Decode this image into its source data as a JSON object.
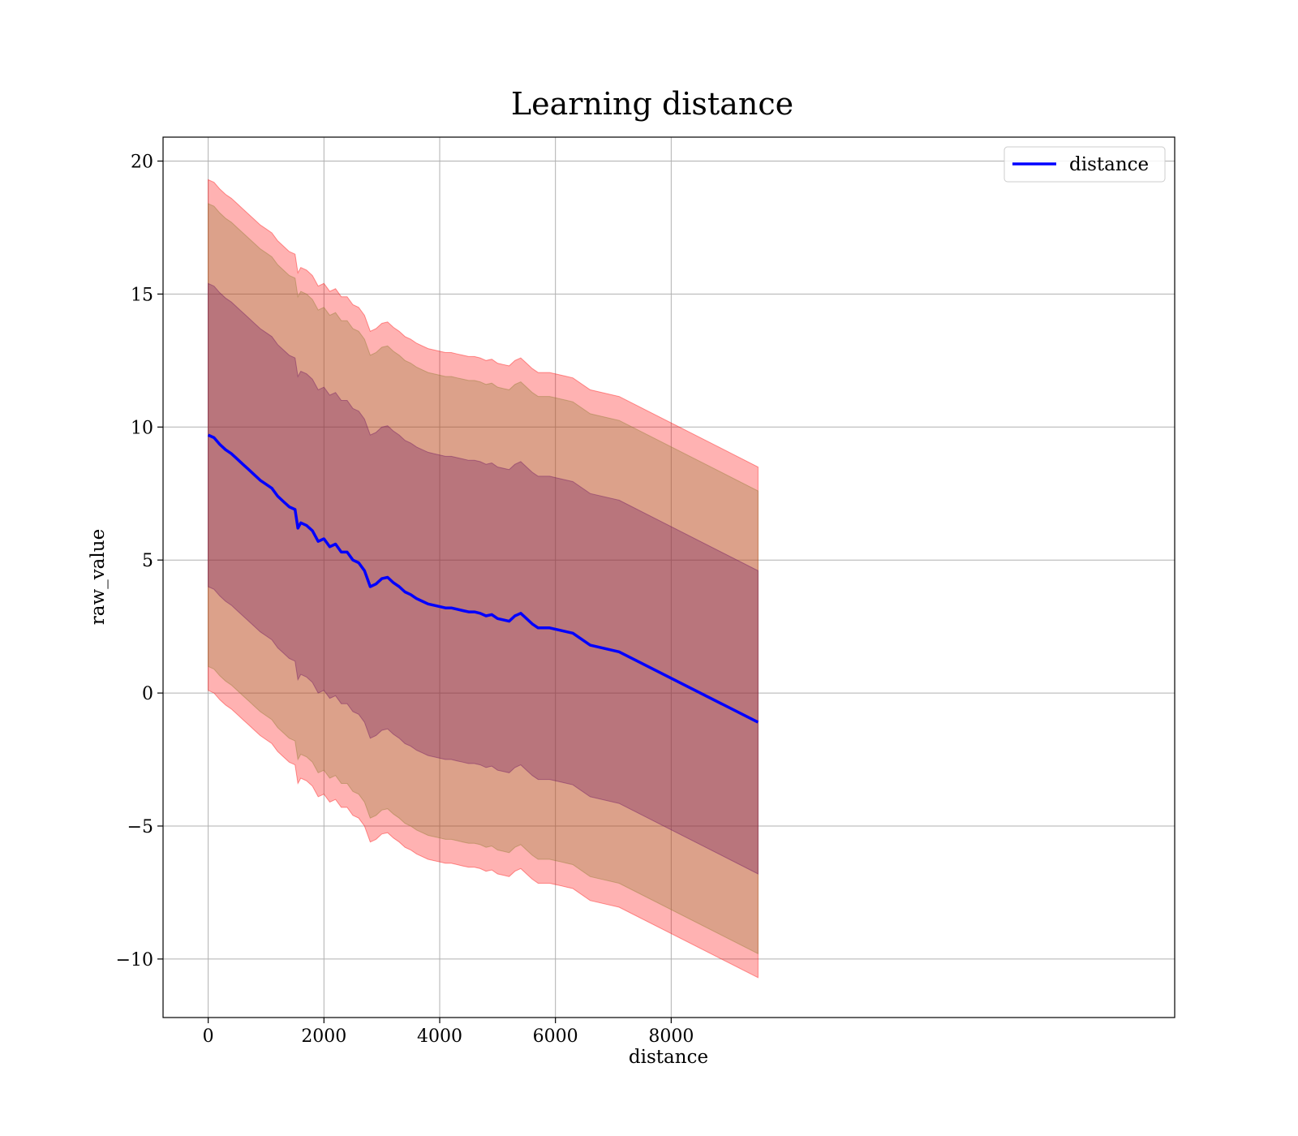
{
  "chart_data": {
    "type": "line",
    "title": "Learning distance",
    "xlabel": "distance",
    "ylabel": "raw_value",
    "xlim": [
      -780,
      16700
    ],
    "ylim": [
      -12.2,
      20.9
    ],
    "xticks": [
      0,
      2000,
      4000,
      6000,
      8000
    ],
    "xtick_labels": [
      "0",
      "2000",
      "4000",
      "6000",
      "8000"
    ],
    "yticks": [
      -10,
      -5,
      0,
      5,
      10,
      15,
      20
    ],
    "ytick_labels": [
      "−10",
      "−5",
      "0",
      "5",
      "10",
      "15",
      "20"
    ],
    "grid": true,
    "legend": {
      "position": "top-right",
      "entries": [
        "distance"
      ]
    },
    "colors": {
      "line": "#0000ff",
      "outer_band": "#ff0000",
      "middle_band": "#8b7a2e",
      "inner_band": "#6a0f5e",
      "grid": "#b0b0b0"
    },
    "x": [
      0,
      100,
      200,
      300,
      400,
      500,
      600,
      700,
      800,
      900,
      1000,
      1100,
      1200,
      1300,
      1400,
      1500,
      1550,
      1600,
      1700,
      1800,
      1900,
      2000,
      2100,
      2200,
      2300,
      2400,
      2500,
      2600,
      2700,
      2800,
      2900,
      3000,
      3100,
      3200,
      3300,
      3400,
      3500,
      3600,
      3700,
      3800,
      3900,
      4000,
      4100,
      4200,
      4300,
      4400,
      4500,
      4600,
      4700,
      4800,
      4900,
      5000,
      5100,
      5200,
      5300,
      5400,
      5500,
      5600,
      5700,
      5800,
      5900,
      6000,
      6100,
      6200,
      6300,
      6600,
      7100,
      9500
    ],
    "series": [
      {
        "name": "distance",
        "values": [
          9.7,
          9.6,
          9.35,
          9.15,
          9.0,
          8.8,
          8.6,
          8.4,
          8.2,
          8.0,
          7.85,
          7.7,
          7.4,
          7.2,
          7.0,
          6.9,
          6.2,
          6.4,
          6.3,
          6.1,
          5.7,
          5.8,
          5.5,
          5.6,
          5.3,
          5.3,
          5.0,
          4.9,
          4.6,
          4.0,
          4.1,
          4.3,
          4.35,
          4.15,
          4.0,
          3.8,
          3.7,
          3.55,
          3.45,
          3.35,
          3.3,
          3.25,
          3.2,
          3.2,
          3.15,
          3.1,
          3.05,
          3.05,
          3.0,
          2.9,
          2.95,
          2.8,
          2.75,
          2.7,
          2.9,
          3.0,
          2.8,
          2.6,
          2.45,
          2.45,
          2.45,
          2.4,
          2.35,
          2.3,
          2.25,
          1.8,
          1.55,
          -1.1
        ]
      }
    ],
    "bands": [
      {
        "label": "outer",
        "half_width": 9.6
      },
      {
        "label": "middle",
        "half_width": 8.7
      },
      {
        "label": "inner",
        "half_width": 5.7
      }
    ]
  }
}
